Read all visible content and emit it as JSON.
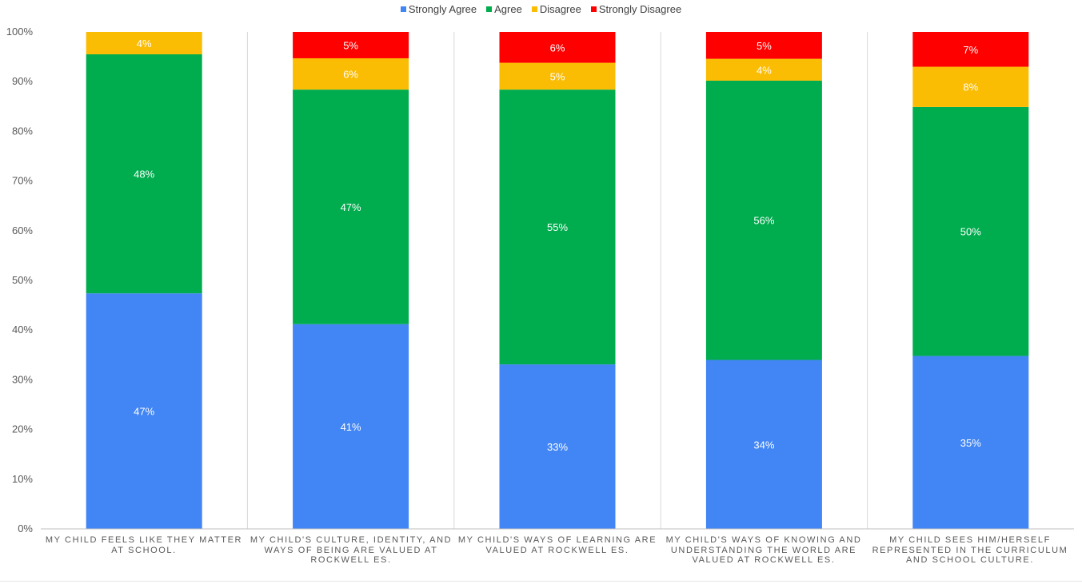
{
  "chart_data": {
    "type": "bar",
    "stacked": true,
    "title": "",
    "xlabel": "",
    "ylabel": "",
    "ylim": [
      0,
      100
    ],
    "y_ticks": [
      "0%",
      "10%",
      "20%",
      "30%",
      "40%",
      "50%",
      "60%",
      "70%",
      "80%",
      "90%",
      "100%"
    ],
    "grid": "vertical separators between categories",
    "legend_position": "top-center",
    "categories": [
      "MY CHILD FEELS LIKE THEY MATTER AT SCHOOL.",
      "MY CHILD'S CULTURE, IDENTITY, AND WAYS OF BEING ARE VALUED AT ROCKWELL ES.",
      "MY CHILD'S WAYS OF LEARNING ARE VALUED AT ROCKWELL ES.",
      "MY CHILD'S WAYS OF KNOWING AND UNDERSTANDING THE WORLD ARE VALUED AT ROCKWELL ES.",
      "MY CHILD SEES HIM/HERSELF REPRESENTED IN THE CURRICULUM AND SCHOOL CULTURE."
    ],
    "series": [
      {
        "name": "Strongly Agree",
        "color": "#4285f4",
        "values": [
          47.4,
          41.2,
          33.1,
          34.0,
          34.8
        ],
        "labels": [
          "47%",
          "41%",
          "33%",
          "34%",
          "35%"
        ]
      },
      {
        "name": "Agree",
        "color": "#00ad4e",
        "values": [
          48.1,
          47.2,
          55.3,
          56.2,
          50.1
        ],
        "labels": [
          "48%",
          "47%",
          "55%",
          "56%",
          "50%"
        ]
      },
      {
        "name": "Disagree",
        "color": "#fbbc04",
        "values": [
          4.5,
          6.3,
          5.4,
          4.4,
          8.1
        ],
        "labels": [
          "4%",
          "6%",
          "5%",
          "4%",
          "8%"
        ]
      },
      {
        "name": "Strongly Disagree",
        "color": "#ff0000",
        "values": [
          0,
          5.3,
          6.2,
          5.4,
          7.0
        ],
        "labels": [
          "",
          "5%",
          "6%",
          "5%",
          "7%"
        ]
      }
    ]
  }
}
